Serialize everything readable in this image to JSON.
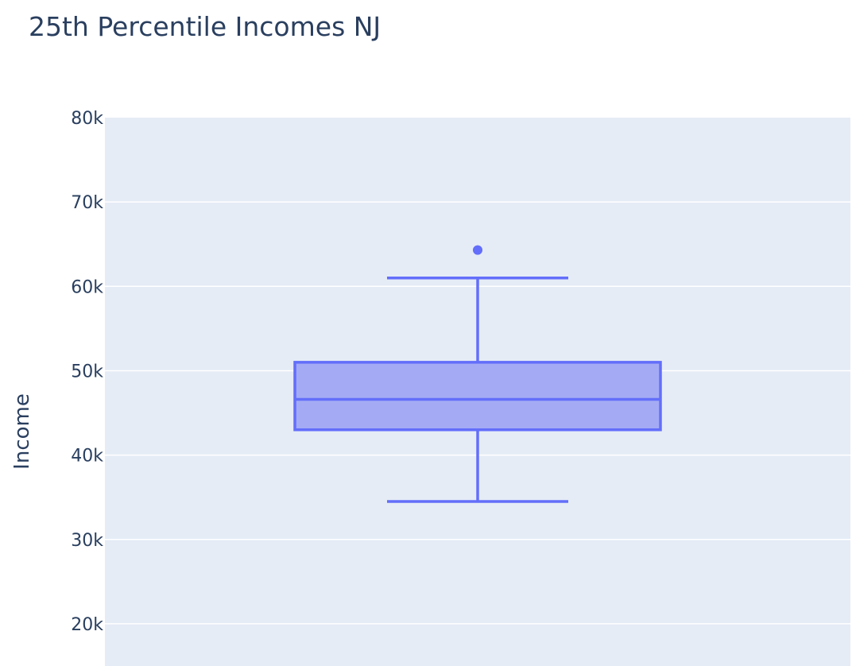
{
  "chart_data": {
    "type": "box",
    "title": "25th Percentile Incomes NJ",
    "xlabel": "",
    "ylabel": "Income",
    "ylim": [
      15000,
      80000
    ],
    "yticks": [
      20000,
      30000,
      40000,
      50000,
      60000,
      70000,
      80000
    ],
    "ytick_labels": [
      "20k",
      "30k",
      "40k",
      "50k",
      "60k",
      "70k",
      "80k"
    ],
    "grid": true,
    "box": {
      "lower_whisker": 34500,
      "q1": 43000,
      "median": 46600,
      "q3": 51000,
      "upper_whisker": 61000,
      "outliers": [
        64300
      ]
    },
    "colors": {
      "plot_background": "#e5ecf6",
      "grid": "#ffffff",
      "box_line": "#636efa",
      "box_fill": "#a4abf4",
      "text": "#2a3f5f"
    }
  }
}
